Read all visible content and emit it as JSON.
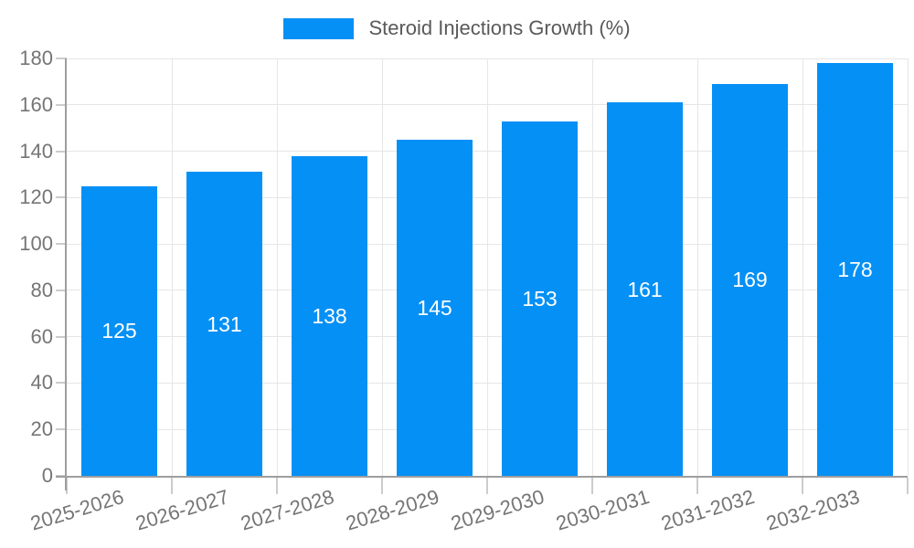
{
  "legend": {
    "label": "Steroid Injections Growth (%)"
  },
  "colors": {
    "bar": "#0590F5",
    "grid": "#e6e6e6",
    "axis": "#9e9e9e",
    "tick": "#cccccc",
    "axis_label": "#757575",
    "legend_text": "#595959",
    "bar_label": "#ffffff",
    "background": "#ffffff"
  },
  "chart_data": {
    "type": "bar",
    "title": "Steroid Injections Growth (%)",
    "categories": [
      "2025-2026",
      "2026-2027",
      "2027-2028",
      "2028-2029",
      "2029-2030",
      "2030-2031",
      "2031-2032",
      "2032-2033"
    ],
    "values": [
      125,
      131,
      138,
      145,
      153,
      161,
      169,
      178
    ],
    "xlabel": "",
    "ylabel": "",
    "ylim": [
      0,
      180
    ],
    "yticks": [
      0,
      20,
      40,
      60,
      80,
      100,
      120,
      140,
      160,
      180
    ],
    "grid": true,
    "legend_position": "top-center",
    "value_labels": "inside-center",
    "x_label_rotation_deg": -17
  }
}
